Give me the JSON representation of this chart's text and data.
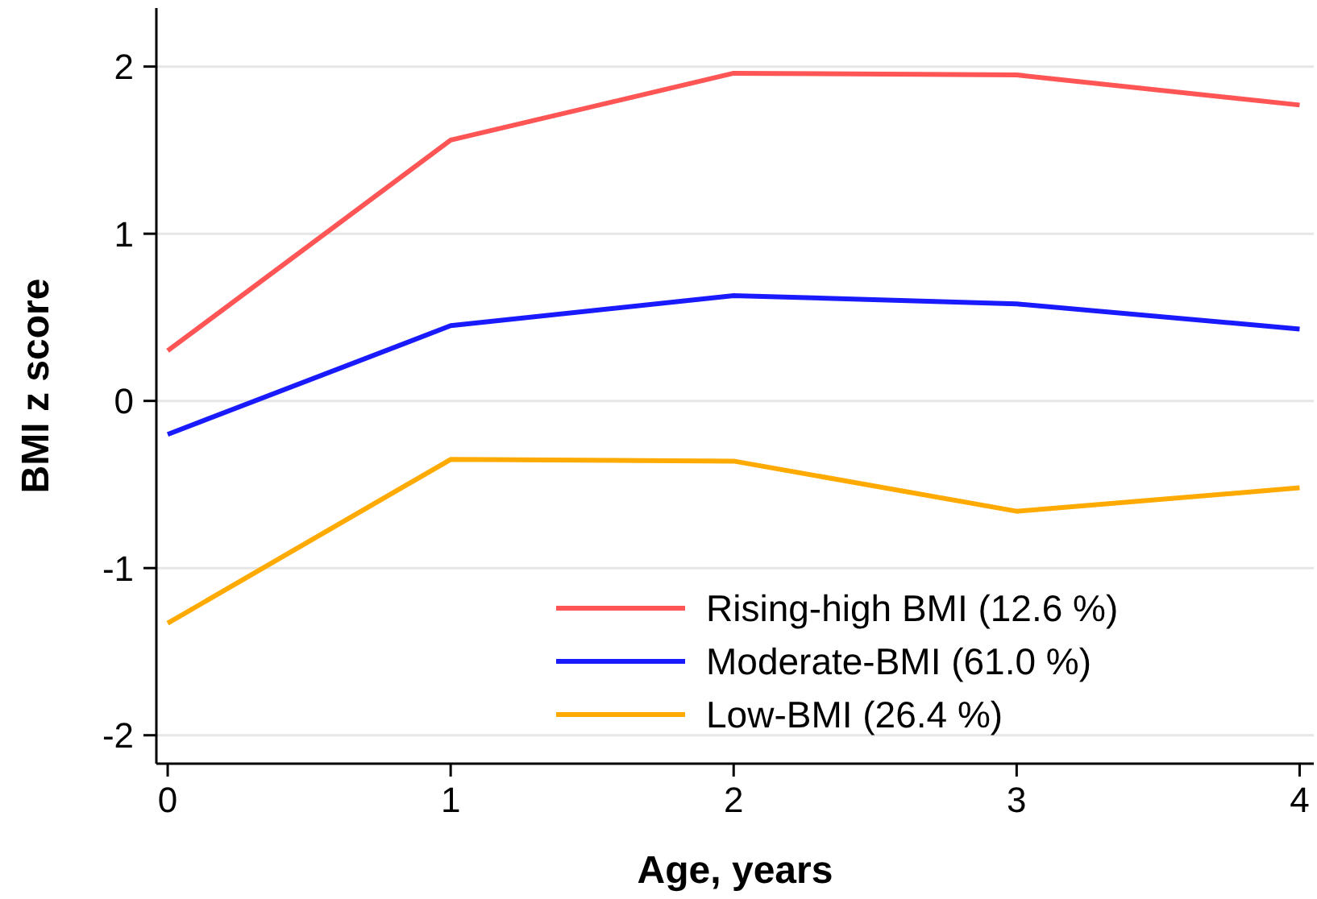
{
  "chart_data": {
    "type": "line",
    "xlabel": "Age, years",
    "ylabel": "BMI z score",
    "x": [
      0,
      1,
      2,
      3,
      4
    ],
    "xlim": [
      -0.04,
      4.05
    ],
    "xticks": [
      0,
      1,
      2,
      3,
      4
    ],
    "ylim": [
      -2.17,
      2.35
    ],
    "yticks": [
      -2,
      -1,
      0,
      1,
      2
    ],
    "grid": "y",
    "legend": "bottom right",
    "marker": "none",
    "line_style": "solid",
    "series": [
      {
        "name": "Rising-high BMI (12.6 %)",
        "color": "#ff5555",
        "values": [
          0.3,
          1.56,
          1.96,
          1.95,
          1.77
        ]
      },
      {
        "name": "Moderate-BMI (61.0 %)",
        "color": "#1a1aff",
        "values": [
          -0.2,
          0.45,
          0.63,
          0.58,
          0.43
        ]
      },
      {
        "name": "Low-BMI (26.4 %)",
        "color": "#ffaa00",
        "values": [
          -1.33,
          -0.35,
          -0.36,
          -0.66,
          -0.52
        ]
      }
    ]
  }
}
